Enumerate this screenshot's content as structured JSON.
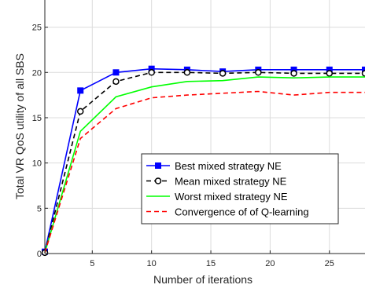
{
  "chart_data": {
    "type": "line",
    "xlabel": "Number of iterations",
    "ylabel": "Total VR QoS utility of all SBS",
    "xlim": [
      1,
      28
    ],
    "ylim": [
      0,
      28
    ],
    "xticks": [
      5,
      10,
      15,
      20,
      25
    ],
    "yticks": [
      0,
      5,
      10,
      15,
      20,
      25
    ],
    "grid": true,
    "legend_position": "center-right",
    "series": [
      {
        "name": "Best mixed strategy NE",
        "color": "#0000ff",
        "style": "solid-square-markers",
        "x": [
          1,
          4,
          7,
          10,
          13,
          16,
          19,
          22,
          25,
          28
        ],
        "y": [
          0.2,
          18.0,
          20.0,
          20.4,
          20.3,
          20.1,
          20.3,
          20.3,
          20.3,
          20.3
        ]
      },
      {
        "name": "Mean mixed strategy NE",
        "color": "#000000",
        "style": "dashed-circle-markers",
        "x": [
          1,
          4,
          7,
          10,
          13,
          16,
          19,
          22,
          25,
          28
        ],
        "y": [
          0.1,
          15.7,
          19.0,
          20.0,
          20.0,
          19.9,
          20.0,
          19.9,
          19.9,
          19.9
        ]
      },
      {
        "name": "Worst mixed strategy NE",
        "color": "#00ff00",
        "style": "solid",
        "x": [
          1,
          4,
          7,
          10,
          13,
          16,
          19,
          22,
          25,
          28
        ],
        "y": [
          0.1,
          13.5,
          17.3,
          18.4,
          19.0,
          19.1,
          19.5,
          19.4,
          19.5,
          19.5
        ]
      },
      {
        "name": "Convergence of of Q-learning",
        "color": "#ff0000",
        "style": "dashed",
        "x": [
          1,
          4,
          7,
          10,
          13,
          16,
          19,
          22,
          25,
          28
        ],
        "y": [
          0.1,
          12.7,
          16.0,
          17.2,
          17.5,
          17.7,
          17.9,
          17.5,
          17.8,
          17.8
        ]
      }
    ]
  }
}
